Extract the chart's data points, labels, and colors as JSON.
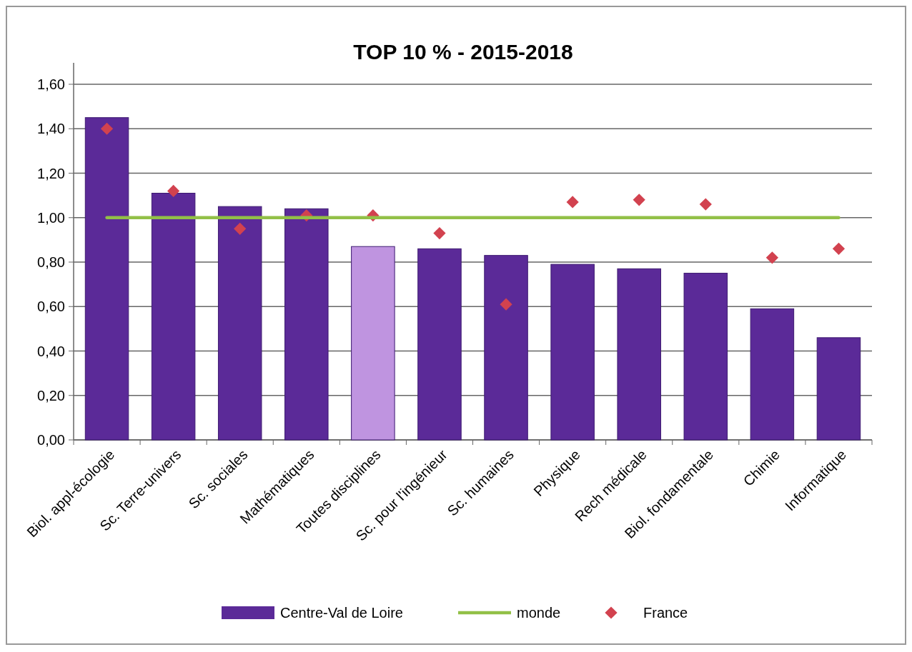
{
  "chart_data": {
    "type": "bar",
    "title": "TOP 10 % - 2015-2018",
    "categories": [
      "Biol. appl-écologie",
      "Sc. Terre-univers",
      "Sc. sociales",
      "Mathématiques",
      "Toutes disciplines",
      "Sc. pour l'ingénieur",
      "Sc. humaines",
      "Physique",
      "Rech médicale",
      "Biol. fondamentale",
      "Chimie",
      "Informatique"
    ],
    "series": [
      {
        "name": "Centre-Val de Loire",
        "color": "#5b2a98",
        "colors": [
          "#5b2a98",
          "#5b2a98",
          "#5b2a98",
          "#5b2a98",
          "#bf94e0",
          "#5b2a98",
          "#5b2a98",
          "#5b2a98",
          "#5b2a98",
          "#5b2a98",
          "#5b2a98",
          "#5b2a98"
        ],
        "values": [
          1.45,
          1.11,
          1.05,
          1.04,
          0.87,
          0.86,
          0.83,
          0.79,
          0.77,
          0.75,
          0.59,
          0.46
        ]
      },
      {
        "name": "monde",
        "type": "line",
        "color": "#92c047",
        "values": [
          1.0,
          1.0,
          1.0,
          1.0,
          1.0,
          1.0,
          1.0,
          1.0,
          1.0,
          1.0,
          1.0,
          1.0
        ]
      },
      {
        "name": "France",
        "type": "scatter",
        "marker": "diamond",
        "color": "#d2424f",
        "values": [
          1.4,
          1.12,
          0.95,
          1.01,
          1.01,
          0.93,
          0.61,
          1.07,
          1.08,
          1.06,
          0.82,
          0.86
        ]
      }
    ],
    "ylim": [
      0,
      1.6
    ],
    "yticks": [
      {
        "value": 0,
        "label": "0,00"
      },
      {
        "value": 0.2,
        "label": "0,20"
      },
      {
        "value": 0.4,
        "label": "0,40"
      },
      {
        "value": 0.6,
        "label": "0,60"
      },
      {
        "value": 0.8,
        "label": "0,80"
      },
      {
        "value": 1.0,
        "label": "1,00"
      },
      {
        "value": 1.2,
        "label": "1,20"
      },
      {
        "value": 1.4,
        "label": "1,40"
      },
      {
        "value": 1.6,
        "label": "1,60"
      }
    ],
    "grid": "y",
    "legend": "bottom"
  }
}
